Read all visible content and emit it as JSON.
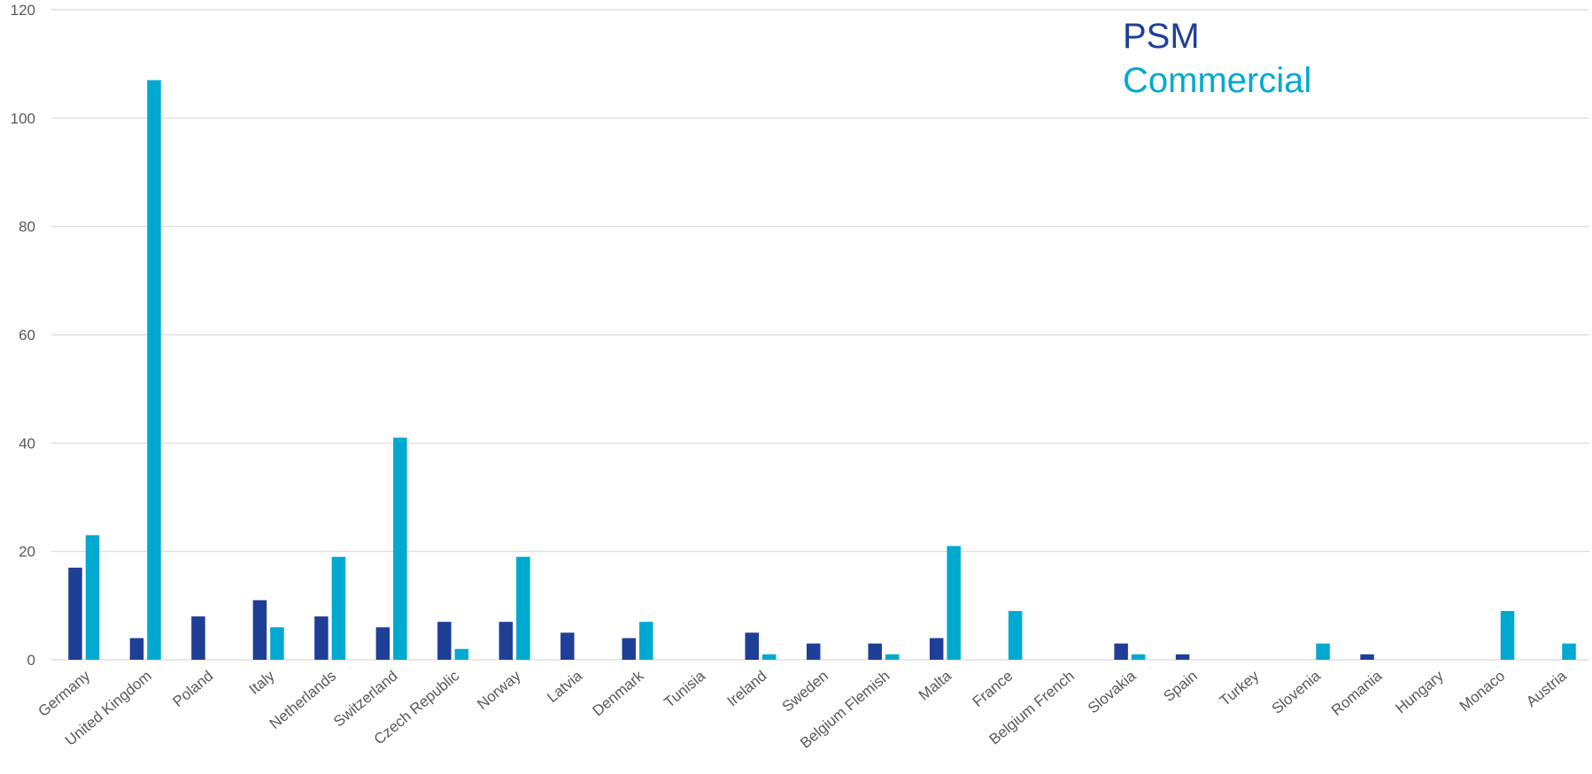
{
  "chart_data": {
    "type": "bar",
    "categories": [
      "Germany",
      "United Kingdom",
      "Poland",
      "Italy",
      "Netherlands",
      "Switzerland",
      "Czech Republic",
      "Norway",
      "Latvia",
      "Denmark",
      "Tunisia",
      "Ireland",
      "Sweden",
      "Belgium Flemish",
      "Malta",
      "France",
      "Belgium French",
      "Slovakia",
      "Spain",
      "Turkey",
      "Slovenia",
      "Romania",
      "Hungary",
      "Monaco",
      "Austria"
    ],
    "series": [
      {
        "name": "PSM",
        "color": "#1f3f97",
        "values": [
          17,
          4,
          8,
          11,
          8,
          6,
          7,
          7,
          5,
          4,
          0,
          5,
          3,
          3,
          4,
          0,
          0,
          3,
          1,
          0,
          0,
          1,
          0,
          0,
          0
        ]
      },
      {
        "name": "Commercial",
        "color": "#00a9d0",
        "values": [
          23,
          107,
          0,
          6,
          19,
          41,
          2,
          19,
          0,
          7,
          0,
          1,
          0,
          1,
          21,
          9,
          0,
          1,
          0,
          0,
          3,
          0,
          0,
          9,
          3
        ]
      }
    ],
    "ylim": [
      0,
      120
    ],
    "yticks": [
      0,
      20,
      40,
      60,
      80,
      100,
      120
    ],
    "grid": true,
    "legend_position": "top-right"
  }
}
